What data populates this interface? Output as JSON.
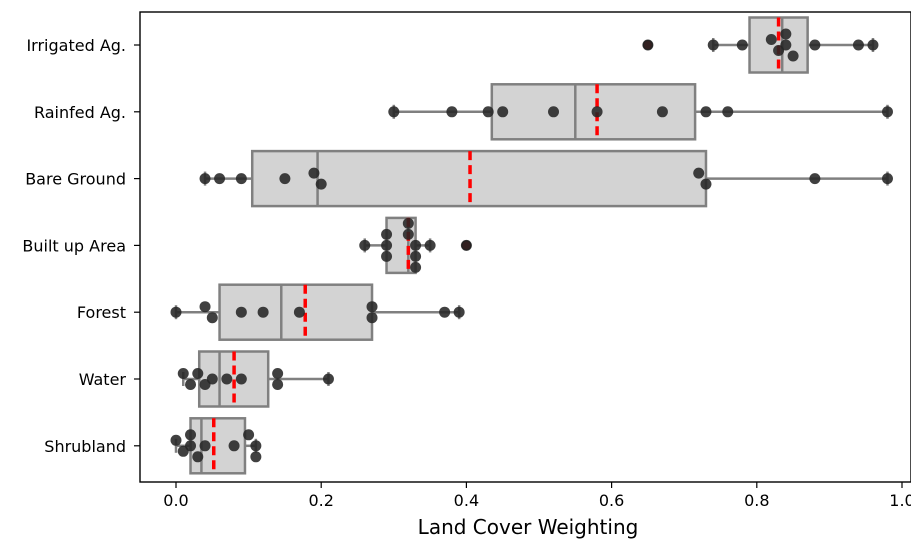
{
  "chart_data": {
    "type": "boxplot",
    "orientation": "horizontal",
    "xlabel": "Land Cover Weighting",
    "ylabel": "",
    "xlim": [
      -0.05,
      1.02
    ],
    "x_ticks": [
      0.0,
      0.2,
      0.4,
      0.6,
      0.8,
      1.0
    ],
    "x_tick_labels": [
      "0.0",
      "0.2",
      "0.4",
      "0.6",
      "0.8",
      "1.0"
    ],
    "grid": false,
    "colors": {
      "box_fill": "#d3d3d3",
      "box_edge": "#808080",
      "mean_line": "#ff0000",
      "points": "#262626",
      "outlier_fill": "#8b0000"
    },
    "categories": [
      "Irrigated Ag.",
      "Rainfed Ag.",
      "Bare Ground",
      "Built up Area",
      "Forest",
      "Water",
      "Shrubland"
    ],
    "boxes": [
      {
        "label": "Irrigated Ag.",
        "whisker_low": 0.74,
        "q1": 0.79,
        "median": 0.835,
        "q3": 0.87,
        "whisker_high": 0.96,
        "mean": 0.83,
        "outliers": [
          0.65
        ],
        "points": [
          0.65,
          0.74,
          0.78,
          0.82,
          0.83,
          0.84,
          0.84,
          0.85,
          0.88,
          0.94,
          0.96
        ]
      },
      {
        "label": "Rainfed Ag.",
        "whisker_low": 0.3,
        "q1": 0.435,
        "median": 0.55,
        "q3": 0.715,
        "whisker_high": 0.98,
        "mean": 0.58,
        "outliers": [],
        "points": [
          0.3,
          0.38,
          0.43,
          0.45,
          0.52,
          0.58,
          0.67,
          0.73,
          0.76,
          0.98
        ]
      },
      {
        "label": "Bare Ground",
        "whisker_low": 0.04,
        "q1": 0.105,
        "median": 0.195,
        "q3": 0.73,
        "whisker_high": 0.98,
        "mean": 0.405,
        "outliers": [],
        "points": [
          0.04,
          0.06,
          0.09,
          0.15,
          0.19,
          0.2,
          0.72,
          0.73,
          0.88,
          0.98
        ]
      },
      {
        "label": "Built up Area",
        "whisker_low": 0.26,
        "q1": 0.29,
        "median": 0.32,
        "q3": 0.33,
        "whisker_high": 0.35,
        "mean": 0.32,
        "outliers": [
          0.4
        ],
        "points": [
          0.26,
          0.29,
          0.29,
          0.29,
          0.32,
          0.32,
          0.33,
          0.33,
          0.33,
          0.35,
          0.4
        ]
      },
      {
        "label": "Forest",
        "whisker_low": 0.0,
        "q1": 0.06,
        "median": 0.145,
        "q3": 0.27,
        "whisker_high": 0.39,
        "mean": 0.178,
        "outliers": [],
        "points": [
          0.0,
          0.04,
          0.05,
          0.09,
          0.12,
          0.17,
          0.27,
          0.27,
          0.37,
          0.39
        ]
      },
      {
        "label": "Water",
        "whisker_low": 0.01,
        "q1": 0.032,
        "median": 0.06,
        "q3": 0.127,
        "whisker_high": 0.21,
        "mean": 0.08,
        "outliers": [],
        "points": [
          0.01,
          0.02,
          0.03,
          0.04,
          0.05,
          0.07,
          0.09,
          0.14,
          0.14,
          0.21
        ]
      },
      {
        "label": "Shrubland",
        "whisker_low": 0.0,
        "q1": 0.02,
        "median": 0.035,
        "q3": 0.095,
        "whisker_high": 0.11,
        "mean": 0.052,
        "outliers": [],
        "points": [
          0.0,
          0.01,
          0.02,
          0.02,
          0.03,
          0.04,
          0.08,
          0.1,
          0.11,
          0.11
        ]
      }
    ]
  }
}
